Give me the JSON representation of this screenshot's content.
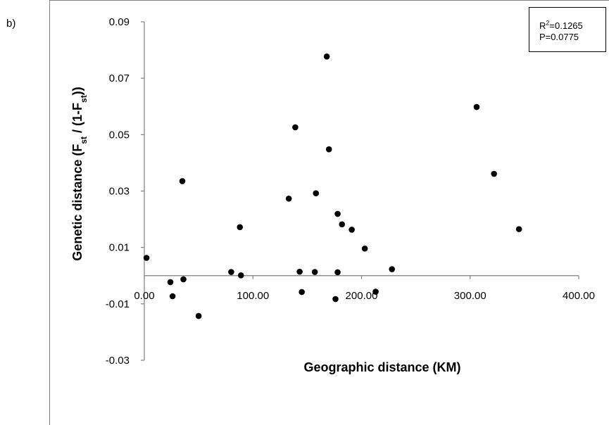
{
  "panel_label": "b)",
  "stats": {
    "r2_prefix": "R",
    "r2_sup": "2",
    "r2_value": "=0.1265",
    "p_text": "P=0.0775"
  },
  "chart_data": {
    "type": "scatter",
    "xlabel": "Geographic distance (KM)",
    "ylabel_parts": [
      "Genetic distance  (F",
      "st",
      " / (1-F",
      "st",
      "))"
    ],
    "xlim": [
      0,
      400
    ],
    "ylim": [
      -0.03,
      0.09
    ],
    "x_ticks": [
      0,
      100,
      200,
      300,
      400
    ],
    "x_tick_labels": [
      "0.00",
      "100.00",
      "200.00",
      "300.00",
      "400.00"
    ],
    "y_ticks": [
      -0.03,
      -0.01,
      0.01,
      0.03,
      0.05,
      0.07,
      0.09
    ],
    "y_tick_labels": [
      "-0.03",
      "-0.01",
      "0.01",
      "0.03",
      "0.05",
      "0.07",
      "0.09"
    ],
    "point_color": "#000000",
    "points": [
      [
        2,
        0.0063
      ],
      [
        24,
        -0.0023
      ],
      [
        26,
        -0.0073
      ],
      [
        35,
        0.0335
      ],
      [
        36,
        -0.0013
      ],
      [
        50,
        -0.0143
      ],
      [
        80,
        0.0013
      ],
      [
        88,
        0.0172
      ],
      [
        89,
        0.0001
      ],
      [
        133,
        0.0273
      ],
      [
        139,
        0.0526
      ],
      [
        143,
        0.0014
      ],
      [
        145,
        -0.0058
      ],
      [
        157,
        0.0013
      ],
      [
        158,
        0.0292
      ],
      [
        168,
        0.0777
      ],
      [
        170,
        0.0448
      ],
      [
        176,
        -0.0083
      ],
      [
        178,
        0.0012
      ],
      [
        178,
        0.0219
      ],
      [
        182,
        0.0182
      ],
      [
        191,
        0.0163
      ],
      [
        203,
        0.0096
      ],
      [
        213,
        -0.0057
      ],
      [
        228,
        0.0023
      ],
      [
        306,
        0.0598
      ],
      [
        322,
        0.0361
      ],
      [
        345,
        0.0165
      ]
    ]
  }
}
